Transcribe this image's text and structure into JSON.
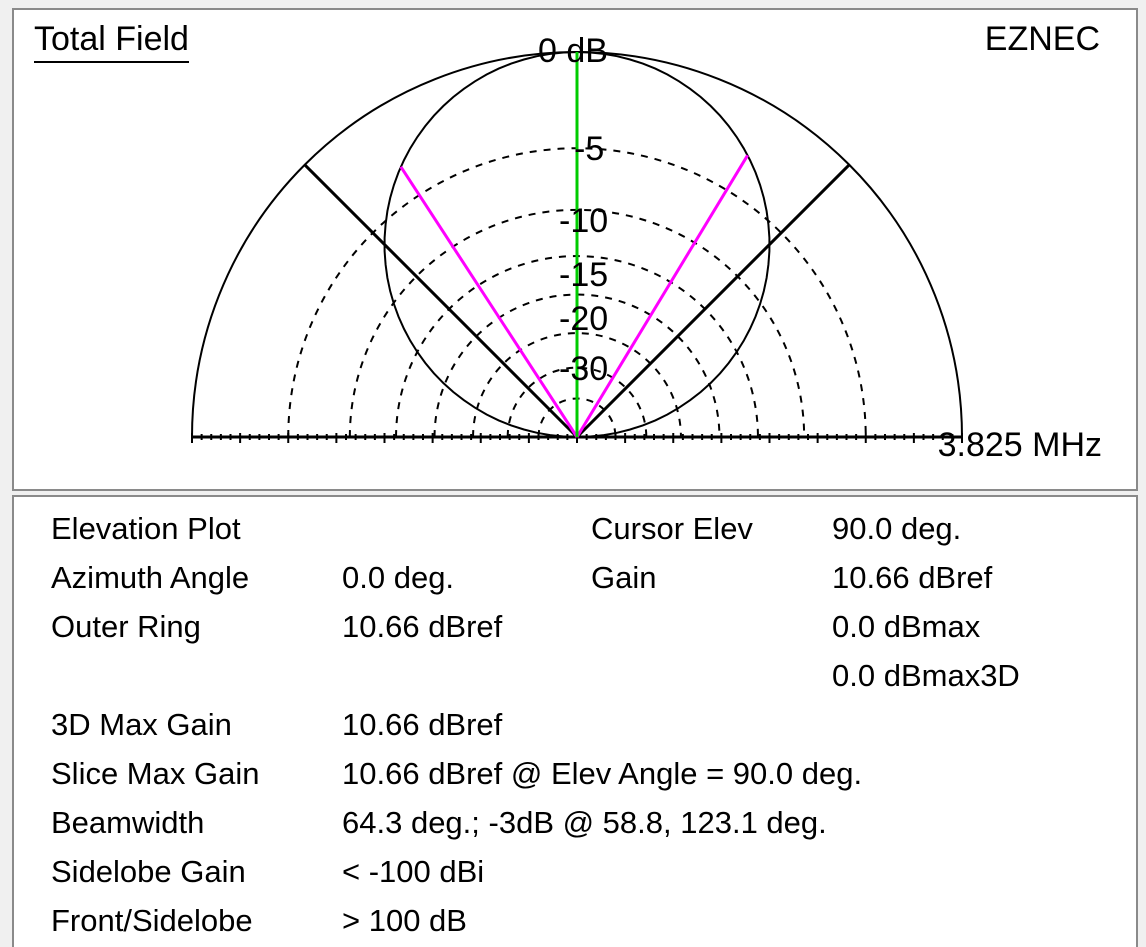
{
  "plot": {
    "title": "Total Field",
    "brand": "EZNEC",
    "frequency": "3.825 MHz",
    "outer_label": "0 dB",
    "ring_labels": [
      "-5",
      "-10",
      "-15",
      "-20",
      "-30"
    ],
    "colors": {
      "pattern": "#000000",
      "cursor": "#00cc00",
      "beamwidth": "#ff00ff"
    },
    "beamwidth_angles_deg": [
      58.8,
      123.1
    ],
    "cursor_angle_deg": 90.0
  },
  "info": {
    "left_labels": [
      "Elevation Plot",
      "Azimuth Angle",
      "Outer Ring",
      "",
      "3D Max Gain",
      "Slice Max Gain",
      "Beamwidth",
      "Sidelobe Gain",
      "Front/Sidelobe"
    ],
    "left_values": [
      "",
      "0.0 deg.",
      "10.66 dBref",
      "",
      "10.66 dBref",
      "10.66 dBref @ Elev Angle = 90.0 deg.",
      "64.3 deg.; -3dB @ 58.8, 123.1 deg.",
      "< -100 dBi",
      "> 100 dB"
    ],
    "cursor_labels": [
      "Cursor Elev",
      "Gain"
    ],
    "cursor_values": [
      "90.0 deg.",
      "10.66 dBref",
      "0.0 dBmax",
      "0.0 dBmax3D"
    ]
  }
}
